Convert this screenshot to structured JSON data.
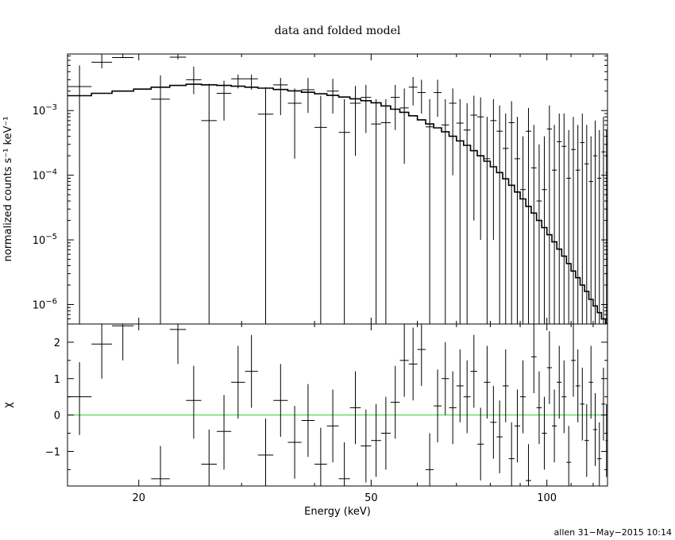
{
  "chart_data": {
    "type": "scatter",
    "title": "data and folded model",
    "xlabel": "Energy (keV)",
    "footer": "allen 31−May−2015 10:14",
    "x_scale": "log",
    "xlim": [
      15.1,
      127
    ],
    "x_ticks": [
      {
        "value": 20,
        "label": "20"
      },
      {
        "value": 50,
        "label": "50"
      },
      {
        "value": 100,
        "label": "100"
      }
    ],
    "top_panel": {
      "ylabel": "normalized counts s⁻¹ keV⁻¹",
      "y_scale": "log",
      "ylim": [
        5e-07,
        0.0075
      ],
      "y_ticks": [
        {
          "value": 0.001,
          "base": "10",
          "exp": "−3"
        },
        {
          "value": 0.0001,
          "base": "10",
          "exp": "−4"
        },
        {
          "value": 1e-05,
          "base": "10",
          "exp": "−5"
        },
        {
          "value": 1e-06,
          "base": "10",
          "exp": "−6"
        }
      ],
      "data": [
        [
          15.1,
          16.6,
          0.00235,
          0.005,
          5e-07
        ],
        [
          16.6,
          18.0,
          0.0056,
          0.0075,
          0.0045
        ],
        [
          18.0,
          19.6,
          0.0066,
          0.0075,
          0.0065
        ],
        [
          21.0,
          22.6,
          0.0015,
          0.0035,
          5e-07
        ],
        [
          22.6,
          24.1,
          0.0067,
          0.0075,
          0.0062
        ],
        [
          24.1,
          25.6,
          0.003,
          0.0048,
          0.0018
        ],
        [
          25.6,
          27.2,
          0.0007,
          0.0026,
          5e-07
        ],
        [
          27.2,
          28.8,
          0.00185,
          0.0029,
          0.0007
        ],
        [
          28.8,
          30.4,
          0.0031,
          0.0036,
          0.0022
        ],
        [
          30.4,
          32.0,
          0.0031,
          0.0036,
          0.0021
        ],
        [
          32.0,
          34.0,
          0.00088,
          0.0023,
          5e-07
        ],
        [
          34.0,
          36.0,
          0.0025,
          0.0032,
          0.00085
        ],
        [
          36.0,
          38.0,
          0.0013,
          0.0022,
          0.00018
        ],
        [
          38.0,
          40.0,
          0.0021,
          0.0032,
          0.00092
        ],
        [
          40.0,
          42.0,
          0.00055,
          0.0017,
          5e-07
        ],
        [
          42.0,
          44.0,
          0.002,
          0.0031,
          0.0009
        ],
        [
          44.0,
          46.0,
          0.00046,
          0.0015,
          5e-07
        ],
        [
          46.0,
          48.0,
          0.0013,
          0.0024,
          0.0002
        ],
        [
          48.0,
          50.0,
          0.0016,
          0.0025,
          0.00045
        ],
        [
          50.0,
          52.0,
          0.00062,
          0.0015,
          5e-07
        ],
        [
          52.0,
          54.0,
          0.00065,
          0.0015,
          5e-07
        ],
        [
          54.0,
          56.0,
          0.0016,
          0.0025,
          0.0005
        ],
        [
          56.0,
          58.0,
          0.0011,
          0.0022,
          0.00015
        ],
        [
          58.0,
          60.0,
          0.0023,
          0.0033,
          0.0012
        ],
        [
          60.0,
          62.0,
          0.0019,
          0.003,
          0.0009
        ],
        [
          62.0,
          64.0,
          0.00056,
          0.0015,
          5e-07
        ],
        [
          64.0,
          66.0,
          0.0019,
          0.003,
          0.0008
        ],
        [
          66.0,
          68.0,
          0.0006,
          0.0015,
          5e-07
        ],
        [
          68.0,
          70.0,
          0.0013,
          0.0022,
          0.0001
        ],
        [
          70.0,
          72.0,
          0.00064,
          0.0015,
          5e-07
        ],
        [
          72.0,
          74.0,
          0.0005,
          0.0013,
          5e-07
        ],
        [
          74.0,
          76.0,
          0.00085,
          0.0017,
          2e-05
        ],
        [
          76.0,
          78.0,
          0.0008,
          0.0016,
          1e-05
        ],
        [
          78.0,
          80.0,
          0.00018,
          0.0008,
          5e-07
        ],
        [
          80.0,
          82.0,
          0.0007,
          0.0015,
          1e-05
        ],
        [
          82.0,
          84.0,
          0.00048,
          0.0012,
          5e-07
        ],
        [
          84.0,
          86.0,
          0.00026,
          0.0009,
          5e-07
        ],
        [
          86.0,
          88.0,
          0.00065,
          0.0014,
          5e-07
        ],
        [
          88.0,
          90.0,
          0.00018,
          0.0008,
          5e-07
        ],
        [
          90.0,
          92.0,
          6e-05,
          0.0004,
          5e-07
        ],
        [
          92.0,
          94.0,
          0.00048,
          0.0011,
          5e-07
        ],
        [
          94.0,
          96.0,
          0.00013,
          0.0006,
          5e-07
        ],
        [
          96.0,
          98.0,
          4e-05,
          0.0003,
          5e-07
        ],
        [
          98.0,
          100.0,
          6e-05,
          0.0004,
          5e-07
        ],
        [
          100.0,
          102.0,
          0.00052,
          0.0012,
          5e-07
        ],
        [
          102.0,
          104.0,
          0.00012,
          0.0006,
          5e-07
        ],
        [
          104.0,
          106.0,
          0.00033,
          0.0009,
          5e-07
        ],
        [
          106.0,
          108.0,
          0.00028,
          0.0009,
          5e-07
        ],
        [
          108.0,
          110.0,
          9e-05,
          0.0005,
          5e-07
        ],
        [
          110.0,
          112.0,
          0.00025,
          0.0008,
          5e-07
        ],
        [
          112.0,
          114.0,
          0.00012,
          0.0006,
          5e-07
        ],
        [
          114.0,
          116.0,
          0.00032,
          0.0009,
          5e-07
        ],
        [
          116.0,
          118.0,
          0.00015,
          0.0006,
          5e-07
        ],
        [
          118.0,
          120.0,
          8e-05,
          0.0004,
          5e-07
        ],
        [
          120.0,
          122.0,
          0.0002,
          0.0007,
          5e-07
        ],
        [
          122.0,
          124.0,
          9e-05,
          0.0005,
          5e-07
        ],
        [
          124.0,
          126.0,
          0.00023,
          0.0008,
          5e-07
        ],
        [
          126.0,
          127.0,
          0.00011,
          0.0005,
          5e-07
        ]
      ],
      "model": [
        [
          15.1,
          0.0017
        ],
        [
          16.6,
          0.00185
        ],
        [
          18.0,
          0.002
        ],
        [
          19.6,
          0.00215
        ],
        [
          21.0,
          0.0023
        ],
        [
          22.6,
          0.00245
        ],
        [
          24.1,
          0.00255
        ],
        [
          25.6,
          0.0025
        ],
        [
          27.2,
          0.00245
        ],
        [
          28.8,
          0.00238
        ],
        [
          30.4,
          0.0023
        ],
        [
          32.0,
          0.00222
        ],
        [
          34.0,
          0.00212
        ],
        [
          36.0,
          0.00202
        ],
        [
          38.0,
          0.00192
        ],
        [
          40.0,
          0.00182
        ],
        [
          42.0,
          0.00172
        ],
        [
          44.0,
          0.00162
        ],
        [
          46.0,
          0.00152
        ],
        [
          48.0,
          0.00142
        ],
        [
          50.0,
          0.00132
        ],
        [
          52.0,
          0.00118
        ],
        [
          54.0,
          0.00105
        ],
        [
          56.0,
          0.00094
        ],
        [
          58.0,
          0.00083
        ],
        [
          60.0,
          0.00072
        ],
        [
          62.0,
          0.00062
        ],
        [
          64.0,
          0.00054
        ],
        [
          66.0,
          0.00047
        ],
        [
          68.0,
          0.0004
        ],
        [
          70.0,
          0.00034
        ],
        [
          72.0,
          0.00029
        ],
        [
          74.0,
          0.00024
        ],
        [
          76.0,
          0.0002
        ],
        [
          78.0,
          0.000165
        ],
        [
          80.0,
          0.000135
        ],
        [
          82.0,
          0.00011
        ],
        [
          84.0,
          8.8e-05
        ],
        [
          86.0,
          7e-05
        ],
        [
          88.0,
          5.5e-05
        ],
        [
          90.0,
          4.3e-05
        ],
        [
          92.0,
          3.3e-05
        ],
        [
          94.0,
          2.6e-05
        ],
        [
          96.0,
          2e-05
        ],
        [
          98.0,
          1.55e-05
        ],
        [
          100.0,
          1.2e-05
        ],
        [
          102.0,
          9.3e-06
        ],
        [
          104.0,
          7.2e-06
        ],
        [
          106.0,
          5.6e-06
        ],
        [
          108.0,
          4.3e-06
        ],
        [
          110.0,
          3.3e-06
        ],
        [
          112.0,
          2.6e-06
        ],
        [
          114.0,
          2e-06
        ],
        [
          116.0,
          1.6e-06
        ],
        [
          118.0,
          1.2e-06
        ],
        [
          120.0,
          9.5e-07
        ],
        [
          122.0,
          7.5e-07
        ],
        [
          124.0,
          6e-07
        ],
        [
          126.0,
          5e-07
        ],
        [
          127.0,
          5e-07
        ]
      ],
      "model_color": "#000000"
    },
    "bottom_panel": {
      "ylabel": "χ",
      "ylim": [
        -1.95,
        2.5
      ],
      "y_ticks": [
        {
          "value": 2,
          "label": "2"
        },
        {
          "value": 1,
          "label": "1"
        },
        {
          "value": 0,
          "label": "0"
        },
        {
          "value": -1,
          "label": "−1"
        }
      ],
      "zero_line_color": "#33cc33",
      "data": [
        [
          15.1,
          16.6,
          0.5,
          1.45,
          -0.55
        ],
        [
          16.6,
          18.0,
          1.95,
          2.5,
          1.0
        ],
        [
          18.0,
          19.6,
          2.45,
          2.5,
          1.5
        ],
        [
          21.0,
          22.6,
          -1.75,
          -0.85,
          -1.95
        ],
        [
          22.6,
          24.1,
          2.35,
          2.5,
          1.4
        ],
        [
          24.1,
          25.6,
          0.4,
          1.35,
          -0.65
        ],
        [
          25.6,
          27.2,
          -1.35,
          -0.4,
          -1.95
        ],
        [
          27.2,
          28.8,
          -0.45,
          0.55,
          -1.5
        ],
        [
          28.8,
          30.4,
          0.9,
          1.9,
          -0.1
        ],
        [
          30.4,
          32.0,
          1.2,
          2.2,
          0.2
        ],
        [
          32.0,
          34.0,
          -1.1,
          -0.1,
          -1.95
        ],
        [
          34.0,
          36.0,
          0.4,
          1.4,
          -0.6
        ],
        [
          36.0,
          38.0,
          -0.75,
          0.25,
          -1.75
        ],
        [
          38.0,
          40.0,
          -0.15,
          0.85,
          -1.15
        ],
        [
          40.0,
          42.0,
          -1.35,
          -0.35,
          -1.95
        ],
        [
          42.0,
          44.0,
          -0.3,
          0.7,
          -1.3
        ],
        [
          44.0,
          46.0,
          -1.75,
          -0.75,
          -1.95
        ],
        [
          46.0,
          48.0,
          0.2,
          1.2,
          -0.8
        ],
        [
          48.0,
          50.0,
          -0.85,
          0.15,
          -1.85
        ],
        [
          50.0,
          52.0,
          -0.7,
          0.3,
          -1.7
        ],
        [
          52.0,
          54.0,
          -0.5,
          0.5,
          -1.5
        ],
        [
          54.0,
          56.0,
          0.35,
          1.35,
          -0.65
        ],
        [
          56.0,
          58.0,
          1.5,
          2.5,
          0.5
        ],
        [
          58.0,
          60.0,
          1.4,
          2.4,
          0.4
        ],
        [
          60.0,
          62.0,
          1.8,
          2.5,
          0.8
        ],
        [
          62.0,
          64.0,
          -1.5,
          -0.5,
          -1.95
        ],
        [
          64.0,
          66.0,
          0.25,
          1.25,
          -0.75
        ],
        [
          66.0,
          68.0,
          1.0,
          2.0,
          0.0
        ],
        [
          68.0,
          70.0,
          0.2,
          1.2,
          -0.8
        ],
        [
          70.0,
          72.0,
          0.8,
          1.8,
          -0.2
        ],
        [
          72.0,
          74.0,
          0.5,
          1.5,
          -0.5
        ],
        [
          74.0,
          76.0,
          1.2,
          2.2,
          0.2
        ],
        [
          76.0,
          78.0,
          -0.8,
          0.2,
          -1.8
        ],
        [
          78.0,
          80.0,
          0.9,
          1.9,
          -0.1
        ],
        [
          80.0,
          82.0,
          -0.2,
          0.8,
          -1.2
        ],
        [
          82.0,
          84.0,
          -0.6,
          0.4,
          -1.6
        ],
        [
          84.0,
          86.0,
          0.8,
          1.8,
          -0.2
        ],
        [
          86.0,
          88.0,
          -1.2,
          -0.2,
          -1.95
        ],
        [
          88.0,
          90.0,
          -0.3,
          0.7,
          -1.3
        ],
        [
          90.0,
          92.0,
          0.5,
          1.5,
          -0.5
        ],
        [
          92.0,
          94.0,
          -1.8,
          -0.8,
          -1.95
        ],
        [
          94.0,
          96.0,
          1.6,
          2.5,
          0.6
        ],
        [
          96.0,
          98.0,
          0.2,
          1.2,
          -0.8
        ],
        [
          98.0,
          100.0,
          -0.5,
          0.5,
          -1.5
        ],
        [
          100.0,
          102.0,
          1.3,
          2.3,
          0.3
        ],
        [
          102.0,
          104.0,
          -0.3,
          0.7,
          -1.3
        ],
        [
          104.0,
          106.0,
          0.9,
          1.9,
          -0.1
        ],
        [
          106.0,
          108.0,
          0.5,
          1.5,
          -0.5
        ],
        [
          108.0,
          110.0,
          -1.3,
          -0.3,
          -1.95
        ],
        [
          110.0,
          112.0,
          1.5,
          2.5,
          0.5
        ],
        [
          112.0,
          114.0,
          0.8,
          1.8,
          -0.2
        ],
        [
          114.0,
          116.0,
          0.3,
          1.3,
          -0.7
        ],
        [
          116.0,
          118.0,
          -0.7,
          0.3,
          -1.7
        ],
        [
          118.0,
          120.0,
          0.9,
          1.9,
          -0.1
        ],
        [
          120.0,
          122.0,
          -0.4,
          0.6,
          -1.4
        ],
        [
          122.0,
          124.0,
          -1.2,
          -0.2,
          -1.95
        ],
        [
          124.0,
          126.0,
          0.3,
          1.3,
          -0.7
        ],
        [
          126.0,
          127.0,
          -0.7,
          0.3,
          -1.7
        ]
      ]
    }
  }
}
